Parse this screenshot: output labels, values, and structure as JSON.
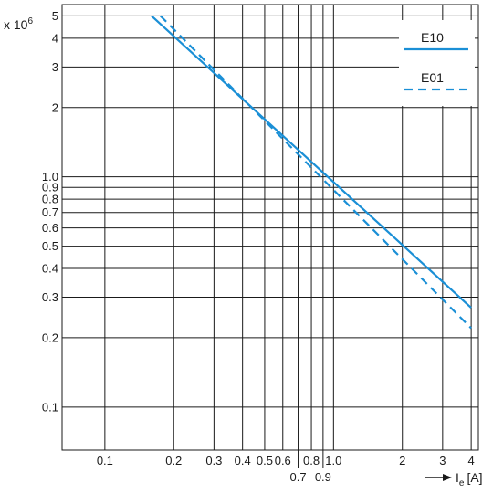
{
  "chart_data": {
    "type": "line",
    "y_multiplier_label": "x 10",
    "y_multiplier_exponent": "6",
    "x_arrow_label": "I",
    "x_arrow_subscript": "e",
    "x_unit": "[A]",
    "x_scale": "log",
    "y_scale": "log",
    "xlim": [
      0.065,
      4.3
    ],
    "ylim": [
      0.065,
      5.6
    ],
    "grid": true,
    "legend_position": "top-right",
    "x_ticks_top_row": [
      "0.1",
      "0.2",
      "0.3",
      "0.4",
      "0.5",
      "0.6",
      "0.8",
      "1.0",
      "2",
      "3",
      "4"
    ],
    "x_ticks_top_values": [
      0.1,
      0.2,
      0.3,
      0.4,
      0.5,
      0.6,
      0.8,
      1.0,
      2,
      3,
      4
    ],
    "x_ticks_bottom_row": [
      "0.7",
      "0.9"
    ],
    "x_ticks_bottom_values": [
      0.7,
      0.9
    ],
    "y_ticks": [
      "0.1",
      "0.2",
      "0.3",
      "0.4",
      "0.5",
      "0.6",
      "0.7",
      "0.8",
      "0.9",
      "1.0",
      "2",
      "3",
      "4",
      "5"
    ],
    "y_tick_values": [
      0.1,
      0.2,
      0.3,
      0.4,
      0.5,
      0.6,
      0.7,
      0.8,
      0.9,
      1.0,
      2,
      3,
      4,
      5
    ],
    "series": [
      {
        "name": "E10",
        "style": "solid",
        "color": "#1a8fd6",
        "x": [
          0.16,
          4.0
        ],
        "y": [
          5.0,
          0.27
        ]
      },
      {
        "name": "E01",
        "style": "dashed",
        "color": "#1a8fd6",
        "x": [
          0.175,
          4.0
        ],
        "y": [
          5.0,
          0.22
        ]
      }
    ]
  }
}
